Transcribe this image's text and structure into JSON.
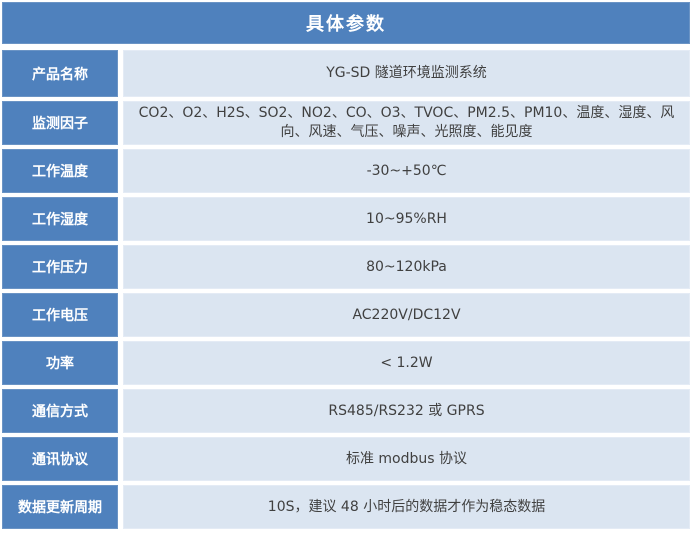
{
  "header": {
    "title": "具体参数"
  },
  "table": {
    "rows": [
      {
        "label": "产品名称",
        "value": "YG-SD 隧道环境监测系统"
      },
      {
        "label": "监测因子",
        "value": "CO2、O2、H2S、SO2、NO2、CO、O3、TVOC、PM2.5、PM10、温度、湿度、风向、风速、气压、噪声、光照度、能见度"
      },
      {
        "label": "工作温度",
        "value": "-30~+50℃"
      },
      {
        "label": "工作湿度",
        "value": "10~95%RH"
      },
      {
        "label": "工作压力",
        "value": "80~120kPa"
      },
      {
        "label": "工作电压",
        "value": "AC220V/DC12V"
      },
      {
        "label": "功率",
        "value": "< 1.2W"
      },
      {
        "label": "通信方式",
        "value": "RS485/RS232 或 GPRS"
      },
      {
        "label": "通讯协议",
        "value": "标准 modbus 协议"
      },
      {
        "label": "数据更新周期",
        "value": "10S，建议 48 小时后的数据才作为稳态数据"
      }
    ]
  },
  "colors": {
    "accent_blue": "#4f81bd",
    "row_bg": "#dbe5f1",
    "header_text": "#ffffff",
    "value_text": "#404040"
  }
}
